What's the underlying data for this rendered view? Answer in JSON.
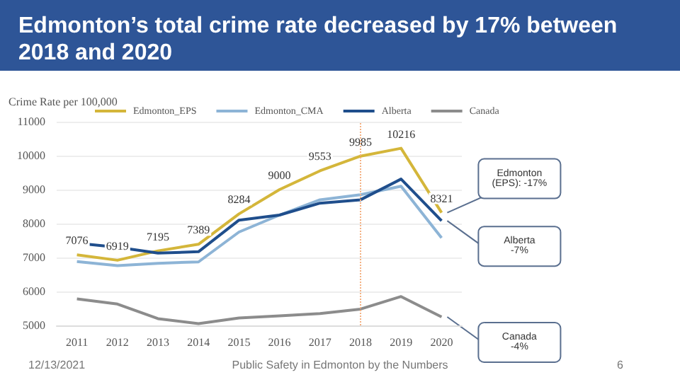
{
  "chart_data": {
    "type": "line",
    "title": "Edmonton’s total crime rate decreased by 17% between 2018 and 2020",
    "ylabel": "Crime Rate per 100,000",
    "categories": [
      "2011",
      "2012",
      "2013",
      "2014",
      "2015",
      "2016",
      "2017",
      "2018",
      "2019",
      "2020"
    ],
    "series": [
      {
        "name": "Edmonton_EPS",
        "color": "#d4b63a",
        "values": [
          7076,
          6919,
          7195,
          7389,
          8284,
          9000,
          9553,
          9985,
          10216,
          8321
        ],
        "value_labels": [
          "7076",
          "6919",
          "7195",
          "7389",
          "8284",
          "9000",
          "9553",
          "9985",
          "10216",
          "8321"
        ]
      },
      {
        "name": "Edmonton_CMA",
        "color": "#8db4d6",
        "values": [
          6880,
          6760,
          6830,
          6870,
          7750,
          8250,
          8700,
          8850,
          9100,
          7580
        ]
      },
      {
        "name": "Alberta",
        "color": "#1f4e8c",
        "values": [
          7420,
          7300,
          7130,
          7170,
          8100,
          8250,
          8600,
          8700,
          9310,
          8080
        ]
      },
      {
        "name": "Canada",
        "color": "#8c8c8c",
        "values": [
          5780,
          5630,
          5200,
          5050,
          5220,
          5280,
          5350,
          5480,
          5850,
          5250
        ]
      }
    ],
    "ylim": [
      5000,
      11000
    ],
    "yticks": [
      5000,
      6000,
      7000,
      8000,
      9000,
      10000,
      11000
    ],
    "grid": "y",
    "legend": "top",
    "marker": "none",
    "line_style": "solid",
    "ref_lines": [
      {
        "axis": "x",
        "value": "2018",
        "color": "#f4b183",
        "line_style": "dotted"
      }
    ],
    "annotations": [
      {
        "text": "Edmonton\n(EPS): -17%",
        "x": "2020",
        "y": 8321
      },
      {
        "text": "Alberta\n-7%",
        "x": "2020",
        "y": 8080
      },
      {
        "text": "Canada\n-4%",
        "x": "2020",
        "y": 5250
      },
      "12/13/2021",
      "Public Safety in Edmonton by the Numbers",
      "6"
    ]
  }
}
